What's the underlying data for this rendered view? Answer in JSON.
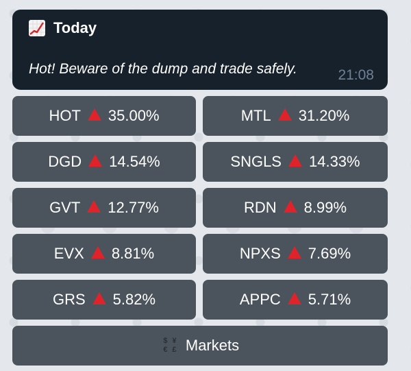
{
  "message": {
    "title": "Today",
    "title_icon": "chart-increasing-icon",
    "text": "Hot! Beware of the dump and trade safely.",
    "time": "21:08"
  },
  "tickers": [
    {
      "symbol": "HOT",
      "change": "35.00%"
    },
    {
      "symbol": "MTL",
      "change": "31.20%"
    },
    {
      "symbol": "DGD",
      "change": "14.54%"
    },
    {
      "symbol": "SNGLS",
      "change": "14.33%"
    },
    {
      "symbol": "GVT",
      "change": "12.77%"
    },
    {
      "symbol": "RDN",
      "change": "8.99%"
    },
    {
      "symbol": "EVX",
      "change": "8.81%"
    },
    {
      "symbol": "NPXS",
      "change": "7.69%"
    },
    {
      "symbol": "GRS",
      "change": "5.82%"
    },
    {
      "symbol": "APPC",
      "change": "5.71%"
    }
  ],
  "markets_button": {
    "label": "Markets",
    "icon": "currency-exchange-icon",
    "icon_glyphs": [
      "$",
      "¥",
      "€",
      "£"
    ]
  },
  "colors": {
    "bubble_bg": "#17212b",
    "button_bg": "#4b545c",
    "up_arrow": "#e0232a",
    "time_text": "#6d8296"
  }
}
